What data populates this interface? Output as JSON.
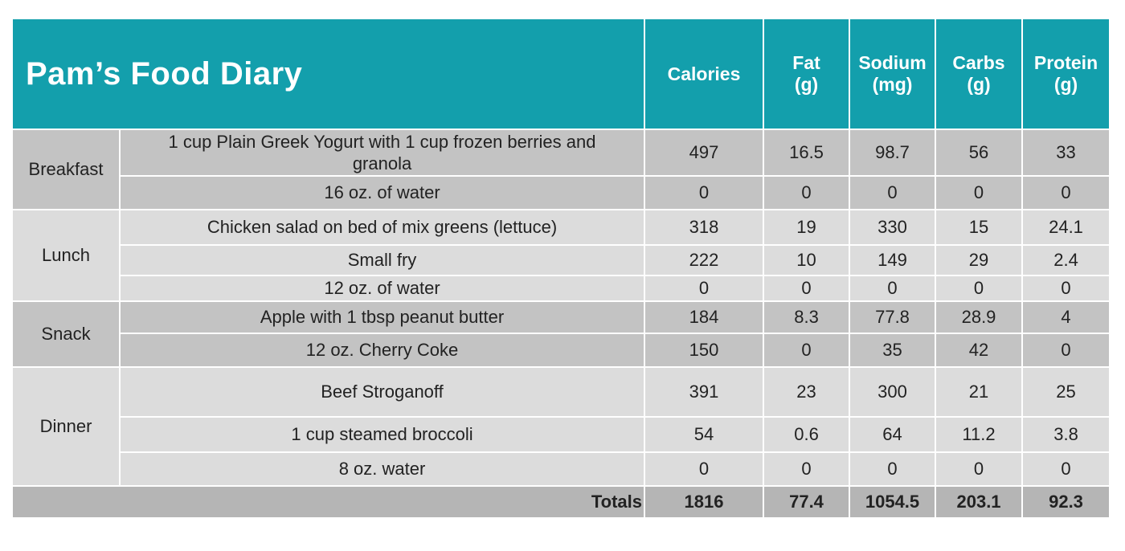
{
  "title": "Pam’s Food Diary",
  "columns": [
    {
      "line1": "Calories",
      "line2": ""
    },
    {
      "line1": "Fat",
      "line2": "(g)"
    },
    {
      "line1": "Sodium",
      "line2": "(mg)"
    },
    {
      "line1": "Carbs",
      "line2": "(g)"
    },
    {
      "line1": "Protein",
      "line2": "(g)"
    }
  ],
  "meals": {
    "breakfast": {
      "label": "Breakfast",
      "items": [
        {
          "food": "1 cup Plain Greek Yogurt with 1 cup frozen berries and granola",
          "calories": "497",
          "fat": "16.5",
          "sodium": "98.7",
          "carbs": "56",
          "protein": "33"
        },
        {
          "food": "16 oz. of water",
          "calories": "0",
          "fat": "0",
          "sodium": "0",
          "carbs": "0",
          "protein": "0"
        }
      ]
    },
    "lunch": {
      "label": "Lunch",
      "items": [
        {
          "food": "Chicken salad on bed of mix greens (lettuce)",
          "calories": "318",
          "fat": "19",
          "sodium": "330",
          "carbs": "15",
          "protein": "24.1"
        },
        {
          "food": "Small fry",
          "calories": "222",
          "fat": "10",
          "sodium": "149",
          "carbs": "29",
          "protein": "2.4"
        },
        {
          "food": "12 oz. of water",
          "calories": "0",
          "fat": "0",
          "sodium": "0",
          "carbs": "0",
          "protein": "0"
        }
      ]
    },
    "snack": {
      "label": "Snack",
      "items": [
        {
          "food": "Apple with 1 tbsp peanut butter",
          "calories": "184",
          "fat": "8.3",
          "sodium": "77.8",
          "carbs": "28.9",
          "protein": "4"
        },
        {
          "food": "12 oz. Cherry Coke",
          "calories": "150",
          "fat": "0",
          "sodium": "35",
          "carbs": "42",
          "protein": "0"
        }
      ]
    },
    "dinner": {
      "label": "Dinner",
      "items": [
        {
          "food": "Beef Stroganoff",
          "calories": "391",
          "fat": "23",
          "sodium": "300",
          "carbs": "21",
          "protein": "25"
        },
        {
          "food": "1 cup steamed broccoli",
          "calories": "54",
          "fat": "0.6",
          "sodium": "64",
          "carbs": "11.2",
          "protein": "3.8"
        },
        {
          "food": "8 oz. water",
          "calories": "0",
          "fat": "0",
          "sodium": "0",
          "carbs": "0",
          "protein": "0"
        }
      ]
    }
  },
  "totals": {
    "label": "Totals",
    "calories": "1816",
    "fat": "77.4",
    "sodium": "1054.5",
    "carbs": "203.1",
    "protein": "92.3"
  },
  "colors": {
    "header": "#139fac",
    "band_dark": "#c3c3c3",
    "band_light": "#dcdcdc",
    "totals": "#b5b5b5"
  }
}
